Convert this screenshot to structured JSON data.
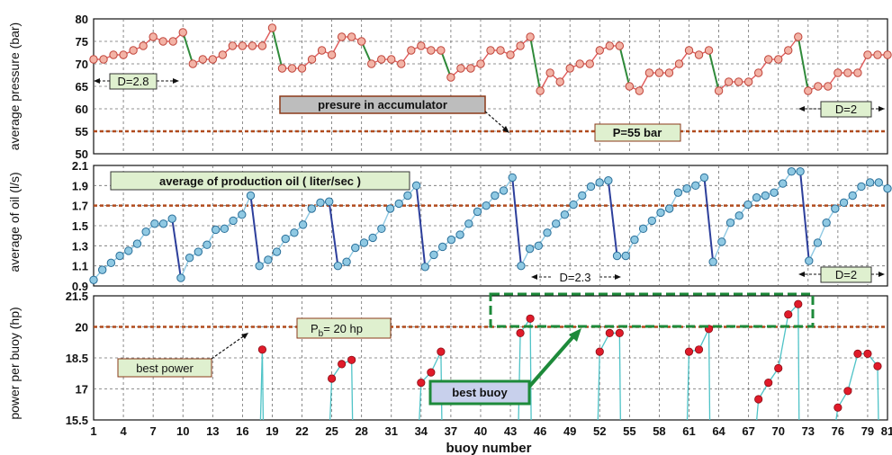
{
  "chart_data": {
    "type": "line",
    "xlabel": "buoy number",
    "x_ticks": [
      1,
      4,
      7,
      10,
      13,
      16,
      19,
      22,
      25,
      28,
      31,
      34,
      37,
      40,
      43,
      46,
      49,
      52,
      55,
      58,
      61,
      64,
      67,
      70,
      73,
      76,
      79,
      81
    ],
    "panels": [
      {
        "id": "pressure",
        "ylabel": "average pressure (bar)",
        "ylim": [
          50,
          80
        ],
        "y_ticks": [
          50,
          55,
          60,
          65,
          70,
          75,
          80
        ],
        "y_tick_labels": [
          "50",
          "55",
          "60",
          "65",
          "70",
          "75",
          "80"
        ],
        "reference_line": 55,
        "values": [
          71,
          71,
          72,
          72,
          73,
          74,
          76,
          75,
          75,
          77,
          70,
          71,
          71,
          72,
          74,
          74,
          74,
          74,
          78,
          69,
          69,
          69,
          71,
          73,
          72,
          76,
          76,
          75,
          70,
          71,
          71,
          70,
          73,
          74,
          73,
          73,
          67,
          69,
          69,
          70,
          73,
          73,
          72,
          74,
          76,
          64,
          68,
          66,
          69,
          70,
          70,
          73,
          74,
          74,
          65,
          64,
          68,
          68,
          68,
          70,
          73,
          72,
          73,
          64,
          66,
          66,
          66,
          68,
          71,
          71,
          73,
          76,
          64,
          65,
          65,
          68,
          68,
          68,
          72,
          72,
          72
        ],
        "annotations": {
          "d_left": "D=2.8",
          "d_right": "D=2",
          "accumulator": "presure in accumulator",
          "p_label": "P=55 bar"
        }
      },
      {
        "id": "oil",
        "ylabel": "average of oil (l/s)",
        "ylim": [
          0.9,
          2.1
        ],
        "y_ticks": [
          0.9,
          1.1,
          1.3,
          1.5,
          1.7,
          1.9,
          2.1
        ],
        "y_tick_labels": [
          "0.9",
          "1.1",
          "1.3",
          "1.5",
          "1.7",
          "1.9",
          "2.1"
        ],
        "reference_line": 1.7,
        "values": [
          0.96,
          1.06,
          1.13,
          1.2,
          1.25,
          1.32,
          1.44,
          1.52,
          1.52,
          1.57,
          0.98,
          1.18,
          1.24,
          1.31,
          1.46,
          1.47,
          1.55,
          1.61,
          1.8,
          1.1,
          1.16,
          1.24,
          1.37,
          1.43,
          1.51,
          1.67,
          1.73,
          1.74,
          1.1,
          1.14,
          1.28,
          1.33,
          1.38,
          1.47,
          1.67,
          1.72,
          1.8,
          1.9,
          1.09,
          1.21,
          1.29,
          1.36,
          1.41,
          1.52,
          1.64,
          1.7,
          1.8,
          1.85,
          1.98,
          1.1,
          1.27,
          1.3,
          1.43,
          1.52,
          1.61,
          1.71,
          1.8,
          1.89,
          1.93,
          1.95,
          1.2,
          1.2,
          1.36,
          1.47,
          1.55,
          1.63,
          1.67,
          1.83,
          1.87,
          1.9,
          1.98,
          1.14,
          1.34,
          1.53,
          1.6,
          1.71,
          1.78,
          1.8,
          1.83,
          1.92,
          2.04,
          2.04,
          1.15,
          1.33,
          1.53,
          1.67,
          1.73,
          1.8,
          1.89,
          1.93,
          1.93,
          1.87
        ],
        "annotations": {
          "title": "average of production oil ( liter/sec )",
          "d_mid": "D=2.3",
          "d_right": "D=2"
        }
      },
      {
        "id": "power",
        "ylabel": "power per buoy (hp)",
        "ylim": [
          15.5,
          21.5
        ],
        "y_ticks": [
          15.5,
          17,
          18.5,
          20,
          21.5
        ],
        "y_tick_labels": [
          "15.5",
          "17",
          "18.5",
          "20",
          "21.5"
        ],
        "reference_line": 20,
        "values": [
          null,
          null,
          null,
          null,
          null,
          null,
          null,
          null,
          null,
          null,
          null,
          null,
          null,
          null,
          null,
          null,
          null,
          18.9,
          null,
          null,
          null,
          null,
          null,
          null,
          17.5,
          18.2,
          18.4,
          null,
          null,
          null,
          null,
          null,
          null,
          17.3,
          17.8,
          18.8,
          null,
          null,
          null,
          null,
          null,
          null,
          null,
          19.7,
          20.4,
          null,
          null,
          null,
          null,
          null,
          null,
          18.8,
          19.7,
          19.7,
          null,
          null,
          null,
          null,
          null,
          null,
          18.8,
          18.9,
          19.9,
          null,
          null,
          null,
          null,
          16.5,
          17.3,
          18.0,
          20.6,
          21.1,
          null,
          null,
          null,
          16.1,
          16.9,
          18.7,
          18.7,
          18.1
        ],
        "annotations": {
          "pb_label_p": "P",
          "pb_label_sub": "b",
          "pb_label_rest": "= 20 hp",
          "best_power": "best power",
          "best_buoy": "best buoy"
        }
      }
    ]
  },
  "colors": {
    "grid": "#6d6d6d",
    "reference": "#b04a1c",
    "pressure_marker_fill": "#f3b3a6",
    "pressure_marker_stroke": "#c0443a",
    "pressure_up_line": "#e05a5a",
    "pressure_drop_line": "#2f8a3a",
    "oil_marker_fill": "#8fc9e3",
    "oil_marker_stroke": "#2a6f99",
    "oil_drop_line": "#2d3f9b",
    "power_line": "#4fc3c7",
    "power_marker": "#e01b2a",
    "label_box_fill": "#dff0cf",
    "best_box": "#1d8a3a"
  }
}
